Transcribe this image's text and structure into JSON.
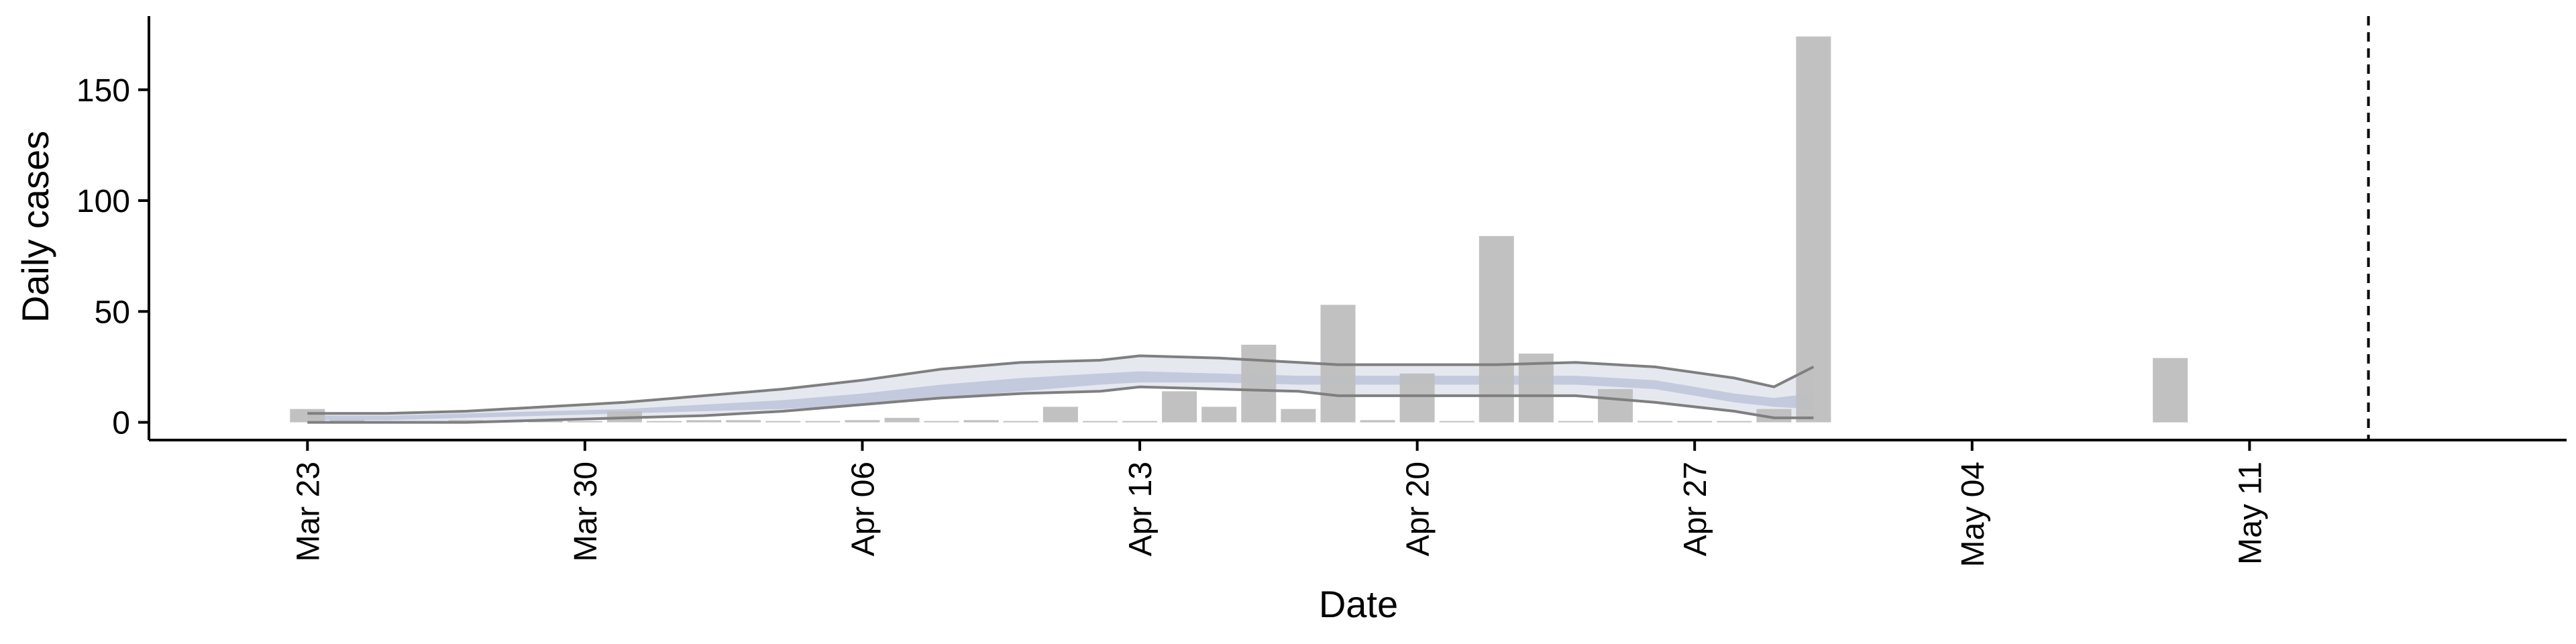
{
  "chart_data": {
    "type": "bar",
    "title": "",
    "xlabel": "Date",
    "ylabel": "Daily cases",
    "ylim": [
      -8,
      182
    ],
    "xlim": [
      "2020-03-19",
      "2020-05-19"
    ],
    "grid": false,
    "y_ticks": [
      0,
      50,
      100,
      150
    ],
    "y_tick_labels": [
      "0",
      "50",
      "100",
      "150"
    ],
    "x_ticks": [
      "2020-03-23",
      "2020-03-30",
      "2020-04-06",
      "2020-04-13",
      "2020-04-20",
      "2020-04-27",
      "2020-05-04",
      "2020-05-11"
    ],
    "x_tick_labels": [
      "Mar 23",
      "Mar 30",
      "Apr 06",
      "Apr 13",
      "Apr 20",
      "Apr 27",
      "May 04",
      "May 11"
    ],
    "reference_line_date": "2020-05-14",
    "colors": {
      "bars": "#bebebe",
      "band_outer": "#e6e8ef",
      "band_inner": "#c4cadd",
      "bound_lines": "#7f7f7f",
      "reference_line": "#000000"
    },
    "bars": {
      "dates": [
        "2020-03-23",
        "2020-03-24",
        "2020-03-25",
        "2020-03-26",
        "2020-03-27",
        "2020-03-28",
        "2020-03-29",
        "2020-03-30",
        "2020-03-31",
        "2020-04-01",
        "2020-04-02",
        "2020-04-03",
        "2020-04-04",
        "2020-04-05",
        "2020-04-06",
        "2020-04-07",
        "2020-04-08",
        "2020-04-09",
        "2020-04-10",
        "2020-04-11",
        "2020-04-12",
        "2020-04-13",
        "2020-04-14",
        "2020-04-15",
        "2020-04-16",
        "2020-04-17",
        "2020-04-18",
        "2020-04-19",
        "2020-04-20",
        "2020-04-21",
        "2020-04-22",
        "2020-04-23",
        "2020-04-24",
        "2020-04-25",
        "2020-04-26",
        "2020-04-27",
        "2020-04-28",
        "2020-04-29",
        "2020-04-30",
        "2020-05-09"
      ],
      "values": [
        6,
        1,
        0,
        0,
        1,
        0,
        0,
        0,
        5,
        0,
        1,
        1,
        0,
        0,
        1,
        2,
        0,
        1,
        0,
        7,
        0,
        0,
        14,
        7,
        35,
        6,
        53,
        1,
        22,
        0,
        84,
        31,
        0,
        15,
        0,
        0,
        0,
        6,
        174,
        29
      ]
    },
    "estimate": {
      "dates": [
        "2020-03-23",
        "2020-03-25",
        "2020-03-27",
        "2020-03-29",
        "2020-03-31",
        "2020-04-02",
        "2020-04-04",
        "2020-04-06",
        "2020-04-08",
        "2020-04-10",
        "2020-04-12",
        "2020-04-13",
        "2020-04-15",
        "2020-04-17",
        "2020-04-18",
        "2020-04-20",
        "2020-04-22",
        "2020-04-24",
        "2020-04-26",
        "2020-04-28",
        "2020-04-29",
        "2020-04-30"
      ],
      "upper": [
        4,
        4,
        5,
        7,
        9,
        12,
        15,
        19,
        24,
        27,
        28,
        30,
        29,
        27,
        26,
        26,
        26,
        27,
        25,
        20,
        16,
        25
      ],
      "inner_upper": [
        3,
        3,
        4,
        5,
        6,
        8,
        10,
        13,
        17,
        20,
        22,
        23,
        22,
        21,
        21,
        21,
        21,
        21,
        19,
        13,
        11,
        13
      ],
      "median": [
        2,
        2,
        3,
        4,
        5,
        6,
        8,
        11,
        14,
        17,
        20,
        21,
        20,
        19,
        19,
        19,
        19,
        19,
        17,
        11,
        9,
        9
      ],
      "inner_lower": [
        1,
        1,
        2,
        3,
        4,
        5,
        6,
        8,
        11,
        14,
        17,
        18,
        18,
        17,
        17,
        17,
        17,
        17,
        15,
        9,
        7,
        6
      ],
      "lower": [
        0,
        0,
        0,
        1,
        2,
        3,
        5,
        8,
        11,
        13,
        14,
        16,
        15,
        14,
        12,
        12,
        12,
        12,
        9,
        5,
        2,
        2
      ]
    }
  }
}
